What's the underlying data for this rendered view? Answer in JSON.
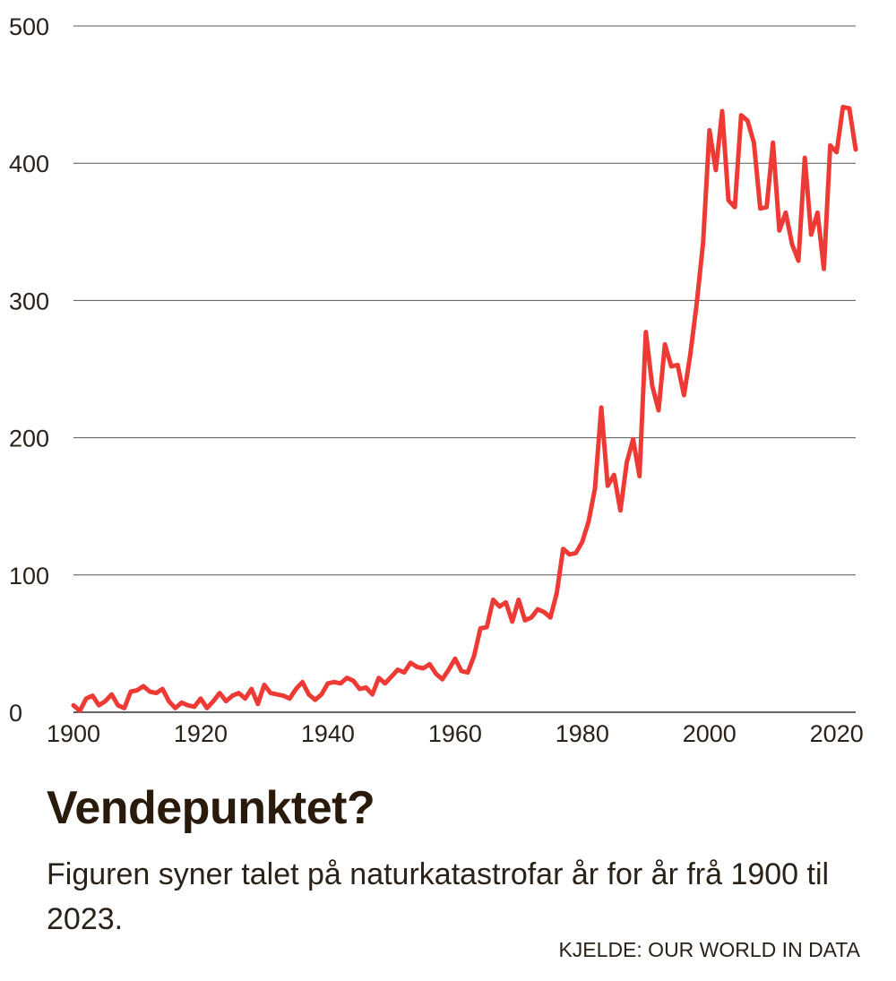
{
  "chart_data": {
    "type": "line",
    "title": "Vendepunktet?",
    "subtitle": "Figuren syner talet på naturkatastrofar år for år frå 1900 til 2023.",
    "source": "KJELDE: OUR WORLD IN DATA",
    "xlabel": "",
    "ylabel": "",
    "xlim": [
      1900,
      2023
    ],
    "ylim": [
      0,
      500
    ],
    "x_ticks": [
      1900,
      1920,
      1940,
      1960,
      1980,
      2000,
      2020
    ],
    "y_ticks": [
      0,
      100,
      200,
      300,
      400,
      500
    ],
    "grid": true,
    "series": [
      {
        "color": "#ee3a35",
        "x": [
          1900,
          1901,
          1902,
          1903,
          1904,
          1905,
          1906,
          1907,
          1908,
          1909,
          1910,
          1911,
          1912,
          1913,
          1914,
          1915,
          1916,
          1917,
          1918,
          1919,
          1920,
          1921,
          1922,
          1923,
          1924,
          1925,
          1926,
          1927,
          1928,
          1929,
          1930,
          1931,
          1932,
          1933,
          1934,
          1935,
          1936,
          1937,
          1938,
          1939,
          1940,
          1941,
          1942,
          1943,
          1944,
          1945,
          1946,
          1947,
          1948,
          1949,
          1950,
          1951,
          1952,
          1953,
          1954,
          1955,
          1956,
          1957,
          1958,
          1959,
          1960,
          1961,
          1962,
          1963,
          1964,
          1965,
          1966,
          1967,
          1968,
          1969,
          1970,
          1971,
          1972,
          1973,
          1974,
          1975,
          1976,
          1977,
          1978,
          1979,
          1980,
          1981,
          1982,
          1983,
          1984,
          1985,
          1986,
          1987,
          1988,
          1989,
          1990,
          1991,
          1992,
          1993,
          1994,
          1995,
          1996,
          1997,
          1998,
          1999,
          2000,
          2001,
          2002,
          2003,
          2004,
          2005,
          2006,
          2007,
          2008,
          2009,
          2010,
          2011,
          2012,
          2013,
          2014,
          2015,
          2016,
          2017,
          2018,
          2019,
          2020,
          2021,
          2022,
          2023
        ],
        "y": [
          5,
          1,
          10,
          12,
          5,
          8,
          13,
          5,
          3,
          15,
          16,
          19,
          15,
          14,
          17,
          8,
          3,
          7,
          5,
          4,
          10,
          3,
          8,
          14,
          8,
          12,
          14,
          10,
          17,
          6,
          20,
          14,
          13,
          12,
          10,
          17,
          22,
          13,
          9,
          13,
          21,
          22,
          21,
          25,
          23,
          17,
          18,
          13,
          25,
          21,
          26,
          31,
          29,
          36,
          33,
          32,
          35,
          28,
          24,
          31,
          39,
          30,
          29,
          41,
          61,
          62,
          82,
          77,
          80,
          66,
          82,
          67,
          69,
          75,
          73,
          69,
          87,
          119,
          115,
          116,
          124,
          139,
          163,
          222,
          165,
          173,
          147,
          182,
          199,
          172,
          277,
          238,
          220,
          268,
          252,
          253,
          231,
          261,
          298,
          342,
          424,
          395,
          438,
          373,
          368,
          435,
          431,
          415,
          367,
          368,
          415,
          351,
          364,
          341,
          329,
          404,
          348,
          364,
          323,
          413,
          408,
          441,
          440,
          410
        ]
      }
    ]
  }
}
